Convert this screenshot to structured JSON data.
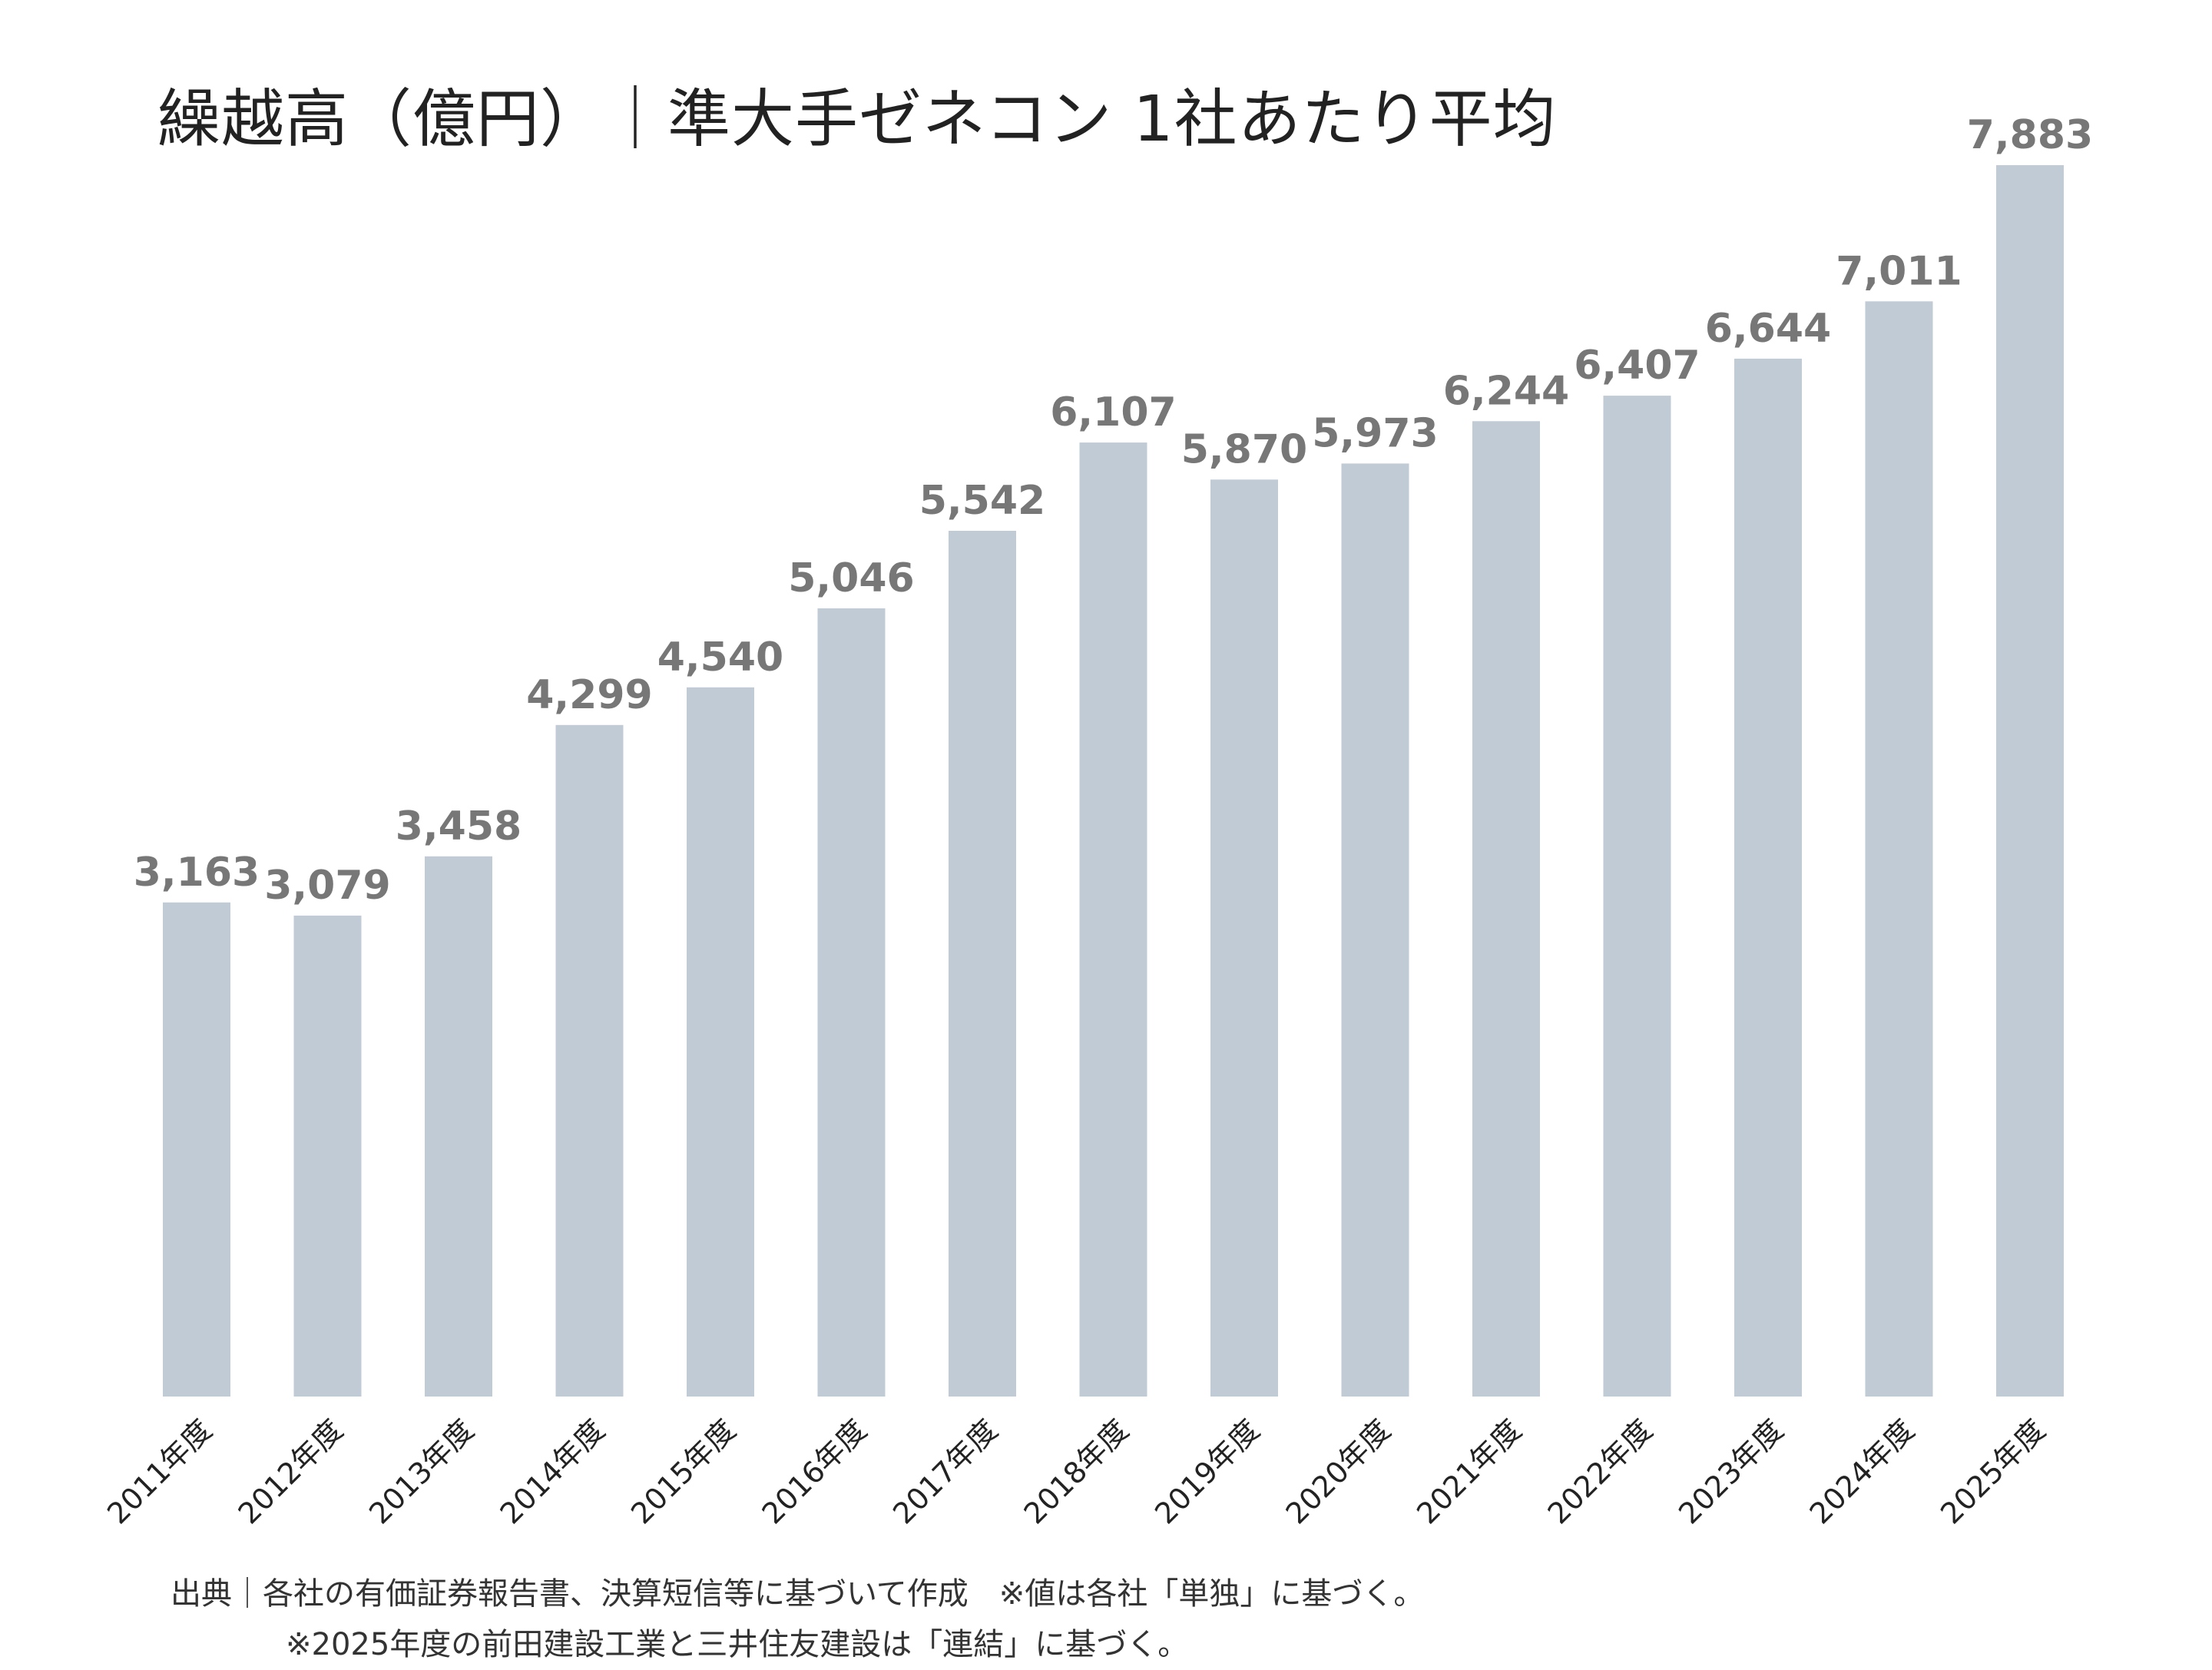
{
  "chart_data": {
    "type": "bar",
    "title": "繰越高（億円）｜準大手ゼネコン 1社あたり平均",
    "categories": [
      "2011年度",
      "2012年度",
      "2013年度",
      "2014年度",
      "2015年度",
      "2016年度",
      "2017年度",
      "2018年度",
      "2019年度",
      "2020年度",
      "2021年度",
      "2022年度",
      "2023年度",
      "2024年度",
      "2025年度"
    ],
    "values": [
      3163,
      3079,
      3458,
      4299,
      4540,
      5046,
      5542,
      6107,
      5870,
      5973,
      6244,
      6407,
      6644,
      7011,
      7883
    ],
    "value_labels": [
      "3,163",
      "3,079",
      "3,458",
      "4,299",
      "4,540",
      "5,046",
      "5,542",
      "6,107",
      "5,870",
      "5,973",
      "6,244",
      "6,407",
      "6,644",
      "7,011",
      "7,883"
    ],
    "xlabel": "",
    "ylabel": "",
    "ylim": [
      0,
      7883
    ],
    "grid": false,
    "bar_color": "#c1cbd6",
    "label_color": "#777777"
  },
  "notes": {
    "line1": "出典｜各社の有価証券報告書、決算短信等に基づいて作成　※値は各社「単独」に基づく。",
    "line2": "※2025年度の前田建設工業と三井住友建設は「連結」に基づく。"
  }
}
